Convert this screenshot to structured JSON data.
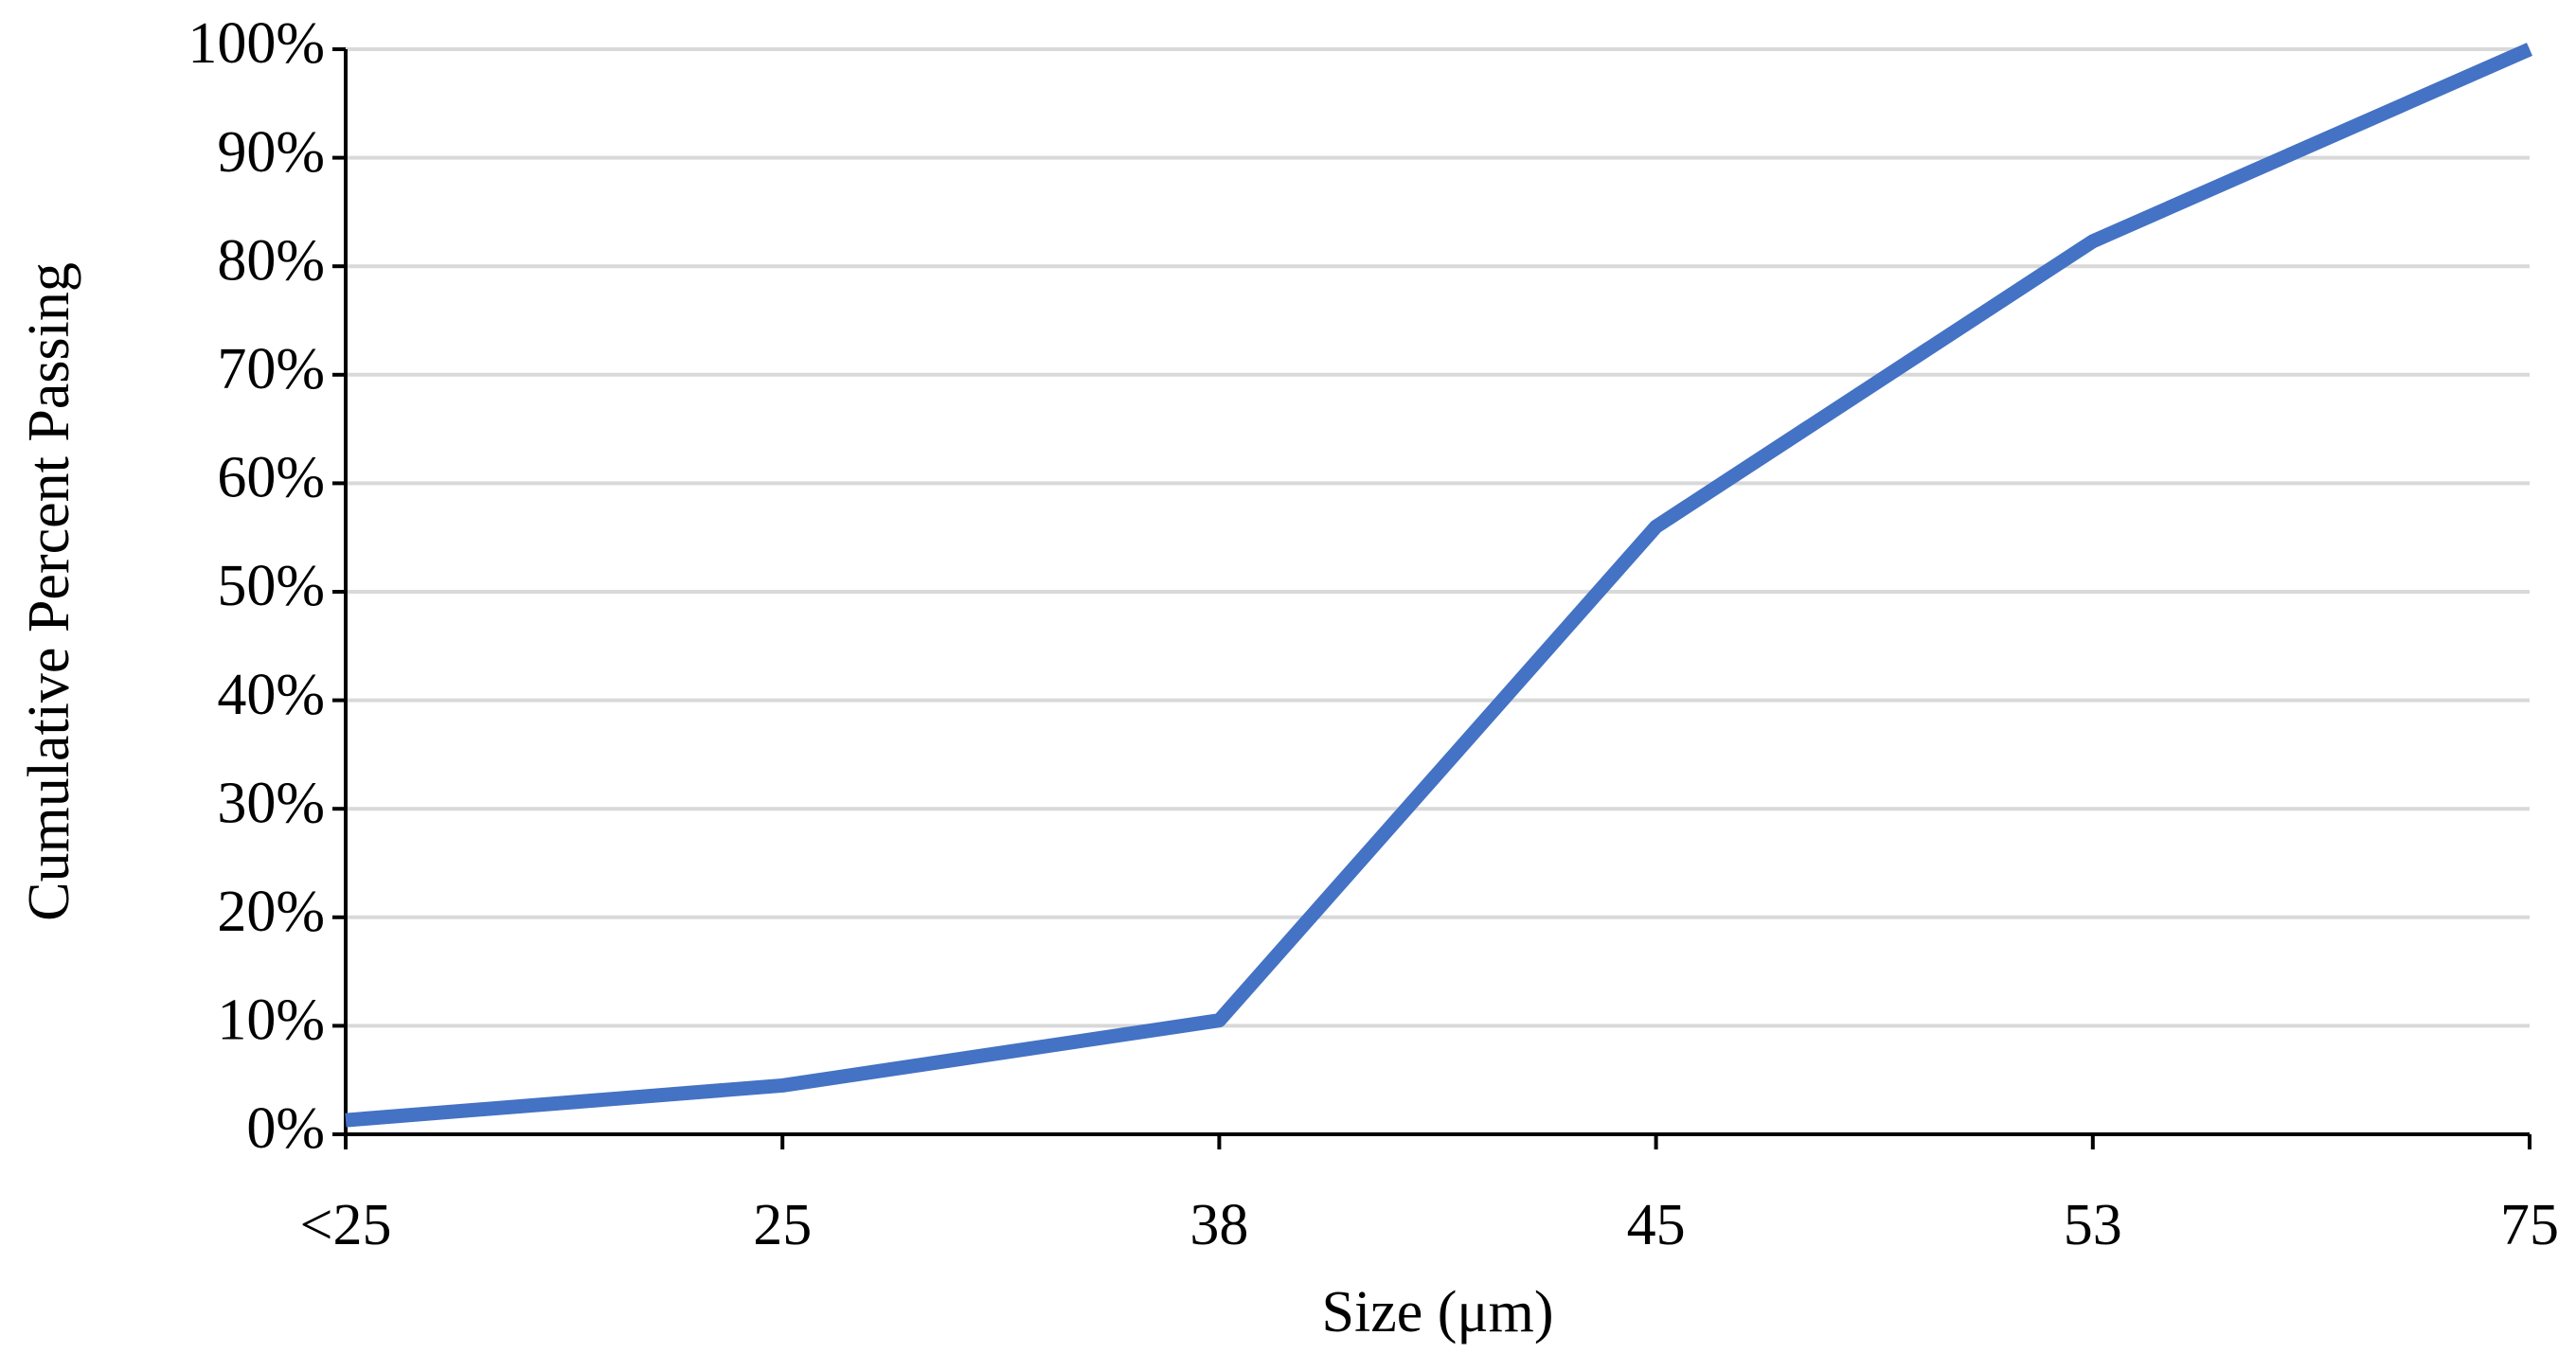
{
  "chart_data": {
    "type": "line",
    "x_label": "Size (μm)",
    "y_label": "Cumulative Percent Passing",
    "categories": [
      "<25",
      "25",
      "38",
      "45",
      "53",
      "75"
    ],
    "values": [
      1.3,
      4.5,
      10.5,
      56,
      82.3,
      100
    ],
    "color": "#4472c4",
    "ylim": [
      0,
      100
    ],
    "yticks": [
      {
        "value": 0,
        "label": "0%"
      },
      {
        "value": 10,
        "label": "10%"
      },
      {
        "value": 20,
        "label": "20%"
      },
      {
        "value": 30,
        "label": "30%"
      },
      {
        "value": 40,
        "label": "40%"
      },
      {
        "value": 50,
        "label": "50%"
      },
      {
        "value": 60,
        "label": "60%"
      },
      {
        "value": 70,
        "label": "70%"
      },
      {
        "value": 80,
        "label": "80%"
      },
      {
        "value": 90,
        "label": "90%"
      },
      {
        "value": 100,
        "label": "100%"
      }
    ],
    "grid": true
  }
}
